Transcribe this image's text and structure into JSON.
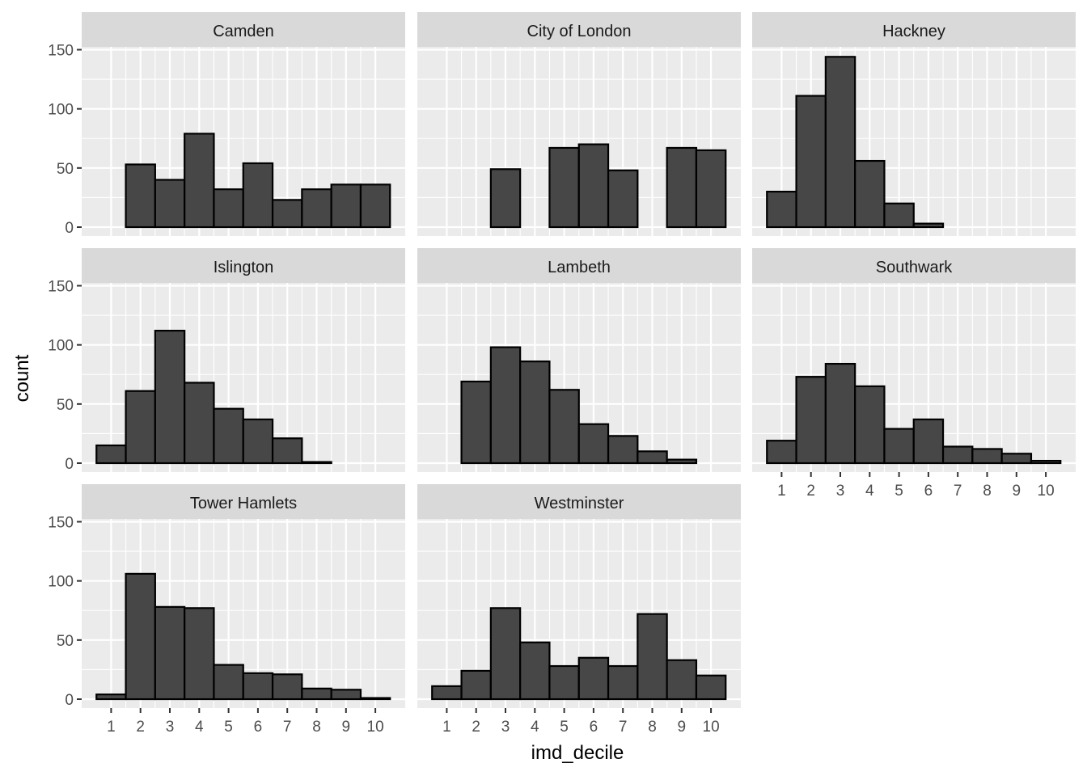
{
  "chart_data": {
    "type": "bar",
    "layout": "faceted histogram, 3 columns",
    "xlabel": "imd_decile",
    "ylabel": "count",
    "categories": [
      "1",
      "2",
      "3",
      "4",
      "5",
      "6",
      "7",
      "8",
      "9",
      "10"
    ],
    "yticks": [
      "0",
      "50",
      "100",
      "150"
    ],
    "ylim": [
      0,
      160
    ],
    "grid": true,
    "colors": {
      "bar_fill": "#474747",
      "bar_stroke": "#000000",
      "panel_bg": "#ebebeb",
      "strip_bg": "#d9d9d9",
      "grid": "#ffffff"
    },
    "series": [
      {
        "name": "Camden",
        "values": [
          0,
          53,
          40,
          79,
          32,
          54,
          23,
          32,
          36,
          36
        ]
      },
      {
        "name": "City of London",
        "values": [
          0,
          0,
          49,
          0,
          67,
          70,
          48,
          0,
          67,
          65
        ]
      },
      {
        "name": "Hackney",
        "values": [
          30,
          111,
          144,
          56,
          20,
          3,
          0,
          0,
          0,
          0
        ]
      },
      {
        "name": "Islington",
        "values": [
          15,
          61,
          112,
          68,
          46,
          37,
          21,
          1,
          0,
          0
        ]
      },
      {
        "name": "Lambeth",
        "values": [
          0,
          69,
          98,
          86,
          62,
          33,
          23,
          10,
          3,
          0
        ]
      },
      {
        "name": "Southwark",
        "values": [
          19,
          73,
          84,
          65,
          29,
          37,
          14,
          12,
          8,
          2
        ]
      },
      {
        "name": "Tower Hamlets",
        "values": [
          4,
          106,
          78,
          77,
          29,
          22,
          21,
          9,
          8,
          1
        ]
      },
      {
        "name": "Westminster",
        "values": [
          11,
          24,
          77,
          48,
          28,
          35,
          28,
          72,
          33,
          20
        ]
      }
    ]
  }
}
